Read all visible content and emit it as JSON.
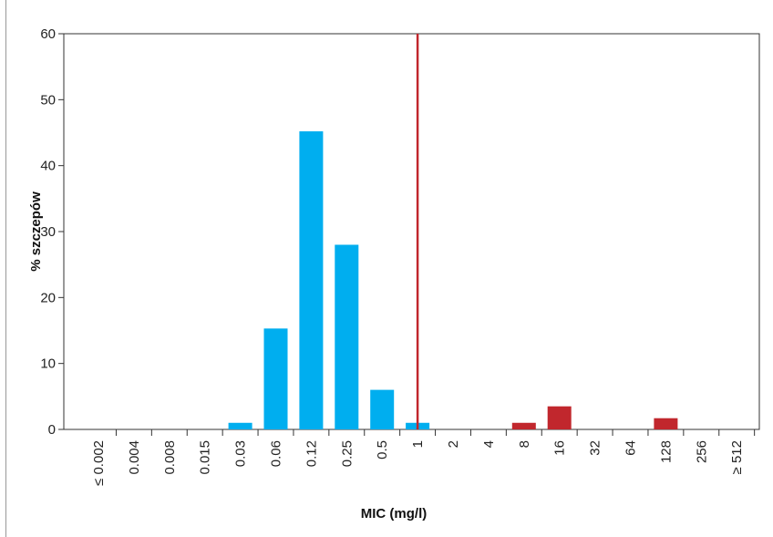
{
  "chart_data": {
    "type": "bar",
    "xlabel": "MIC (mg/l)",
    "ylabel": "% szczepów",
    "ylim": [
      0,
      60
    ],
    "yticks": [
      "0",
      "10",
      "20",
      "30",
      "40",
      "50",
      "60"
    ],
    "categories": [
      "≤ 0.002",
      "0.004",
      "0.008",
      "0.015",
      "0.03",
      "0.06",
      "0.12",
      "0.25",
      "0.5",
      "1",
      "2",
      "4",
      "8",
      "16",
      "32",
      "64",
      "128",
      "256",
      "≥ 512"
    ],
    "values": [
      0,
      0,
      0,
      0,
      1,
      15.3,
      45.2,
      28,
      6,
      1,
      0,
      0,
      1,
      3.5,
      0,
      0,
      1.7,
      0,
      0
    ],
    "bar_colors": [
      "#00aeef",
      "#00aeef",
      "#00aeef",
      "#00aeef",
      "#00aeef",
      "#00aeef",
      "#00aeef",
      "#00aeef",
      "#00aeef",
      "#00aeef",
      "#c1272d",
      "#c1272d",
      "#c1272d",
      "#c1272d",
      "#c1272d",
      "#c1272d",
      "#c1272d",
      "#c1272d",
      "#c1272d"
    ],
    "breakpoint_category": "1",
    "breakpoint_color": "#c1272d",
    "grid": false
  }
}
